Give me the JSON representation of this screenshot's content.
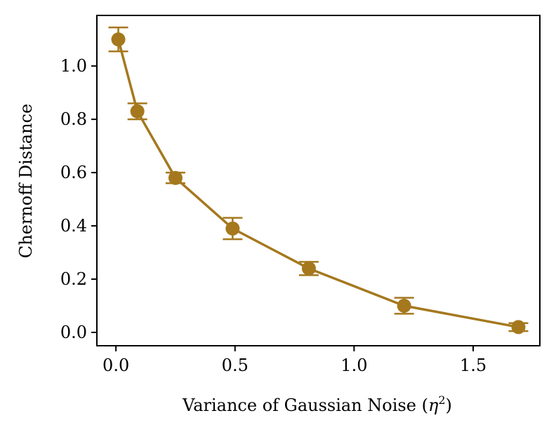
{
  "chart_data": {
    "type": "line",
    "xlabel_text": "Variance of Gaussian Noise (",
    "xlabel_symbol": "η",
    "xlabel_exponent": "2",
    "xlabel_close": ")",
    "ylabel": "Chernoff Distance",
    "xlim": [
      -0.08,
      1.78
    ],
    "ylim": [
      -0.05,
      1.19
    ],
    "x_ticks": [
      0.0,
      0.5,
      1.0,
      1.5
    ],
    "x_tick_labels": [
      "0.0",
      "0.5",
      "1.0",
      "1.5"
    ],
    "y_ticks": [
      0.0,
      0.2,
      0.4,
      0.6,
      0.8,
      1.0
    ],
    "y_tick_labels": [
      "0.0",
      "0.2",
      "0.4",
      "0.6",
      "0.8",
      "1.0"
    ],
    "grid": false,
    "color": "#A5781E",
    "series": [
      {
        "x": [
          0.01,
          0.09,
          0.25,
          0.49,
          0.81,
          1.21,
          1.69
        ],
        "y": [
          1.1,
          0.83,
          0.58,
          0.39,
          0.24,
          0.1,
          0.02
        ],
        "err": [
          0.045,
          0.03,
          0.02,
          0.04,
          0.025,
          0.03,
          0.015
        ]
      }
    ]
  }
}
